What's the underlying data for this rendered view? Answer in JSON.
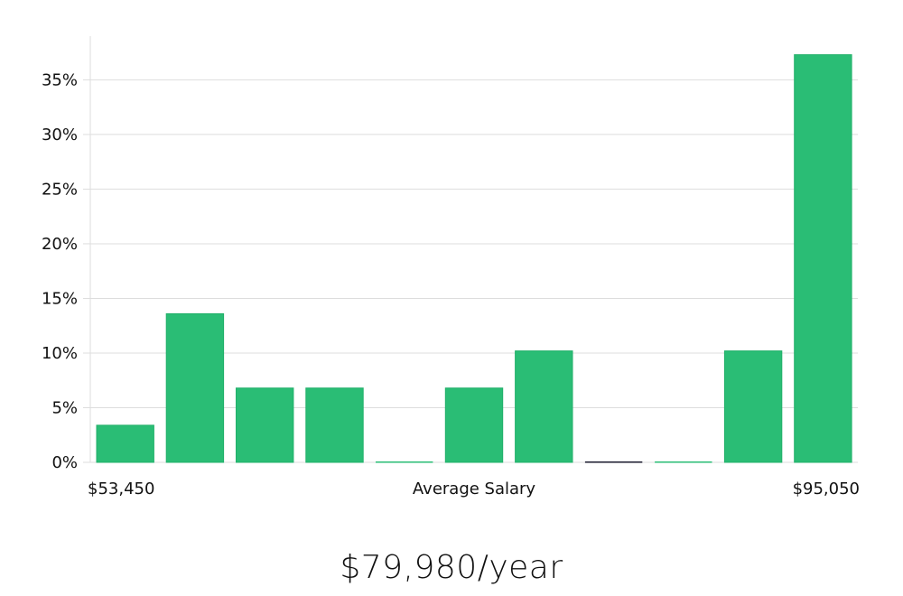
{
  "chart_data": {
    "type": "bar",
    "title": "",
    "xlabel": "Average Salary",
    "ylabel": "",
    "x_min_label": "$53,450",
    "x_max_label": "$95,050",
    "y_ticks": [
      "0%",
      "5%",
      "10%",
      "15%",
      "20%",
      "25%",
      "30%",
      "35%"
    ],
    "ylim": [
      0,
      39
    ],
    "grid": true,
    "bar_color": "#2abd75",
    "zero_bar_color": "#1a1a2e",
    "values": [
      3.4,
      13.6,
      6.8,
      6.8,
      0,
      6.8,
      10.2,
      0,
      0,
      10.2,
      37.3
    ]
  },
  "summary": {
    "average_text": "$79,980/year"
  }
}
